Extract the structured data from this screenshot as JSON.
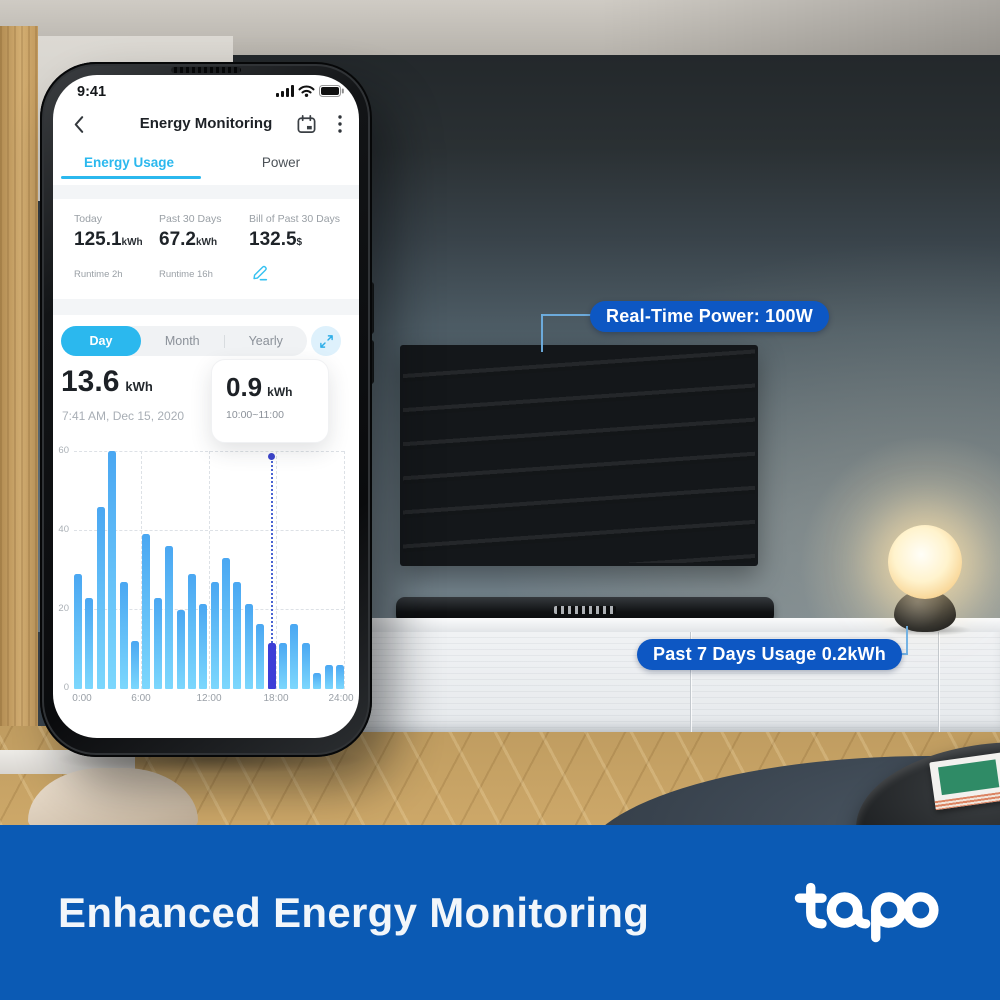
{
  "phone": {
    "status_bar": {
      "time": "9:41"
    },
    "header": {
      "title": "Energy Monitoring"
    },
    "tabs": [
      {
        "label": "Energy Usage",
        "active": true
      },
      {
        "label": "Power",
        "active": false
      }
    ],
    "stats": [
      {
        "label": "Today",
        "value": "125.1",
        "unit": "kWh",
        "sub": "Runtime 2h"
      },
      {
        "label": "Past 30 Days",
        "value": "67.2",
        "unit": "kWh",
        "sub": "Runtime 16h"
      },
      {
        "label": "Bill of Past 30 Days",
        "value": "132.5",
        "unit": "$",
        "sub": ""
      }
    ],
    "period_selector": {
      "options": [
        "Day",
        "Month",
        "Yearly"
      ],
      "selected": "Day"
    },
    "reading": {
      "value": "13.6",
      "unit": "kWh",
      "timestamp": "7:41 AM, Dec 15, 2020"
    },
    "tooltip": {
      "value": "0.9",
      "unit": "kWh",
      "range": "10:00~11:00"
    }
  },
  "chart_data": {
    "type": "bar",
    "title": "Hourly energy usage for Dec 15, 2020",
    "x_unit": "hour of day",
    "categories": [
      "0",
      "1",
      "2",
      "3",
      "4",
      "5",
      "6",
      "7",
      "8",
      "9",
      "10",
      "11",
      "12",
      "13",
      "14",
      "15",
      "16",
      "17",
      "18",
      "19",
      "20",
      "21",
      "22",
      "23"
    ],
    "values": [
      29,
      23,
      46,
      60,
      27,
      12,
      39,
      23,
      36,
      20,
      29,
      21.5,
      27,
      33,
      27,
      21.5,
      16.5,
      11.5,
      11.5,
      16.5,
      11.5,
      4,
      6,
      6
    ],
    "highlight_index": 17,
    "highlight_tooltip": "0.9 kWh 10:00~11:00",
    "ylim": [
      0,
      60
    ],
    "yticks": [
      0,
      20,
      40,
      60
    ],
    "xticks": [
      "0:00",
      "6:00",
      "12:00",
      "18:00",
      "24:00"
    ],
    "grid": "dashed"
  },
  "scene": {
    "callouts": [
      {
        "label": "Real-Time Power: 100W"
      },
      {
        "label": "Past 7 Days Usage 0.2kWh"
      }
    ]
  },
  "banner": {
    "title": "Enhanced Energy Monitoring",
    "logo_text": "tapo"
  },
  "colors": {
    "accent": "#2bb8ee",
    "highlight": "#3d3ed6",
    "bar_top": "#4aa7f2",
    "bar_bottom": "#7cd7fd",
    "dot": "#3c44cc",
    "callout": "#0d57c3",
    "banner": "#0b5ab4"
  }
}
